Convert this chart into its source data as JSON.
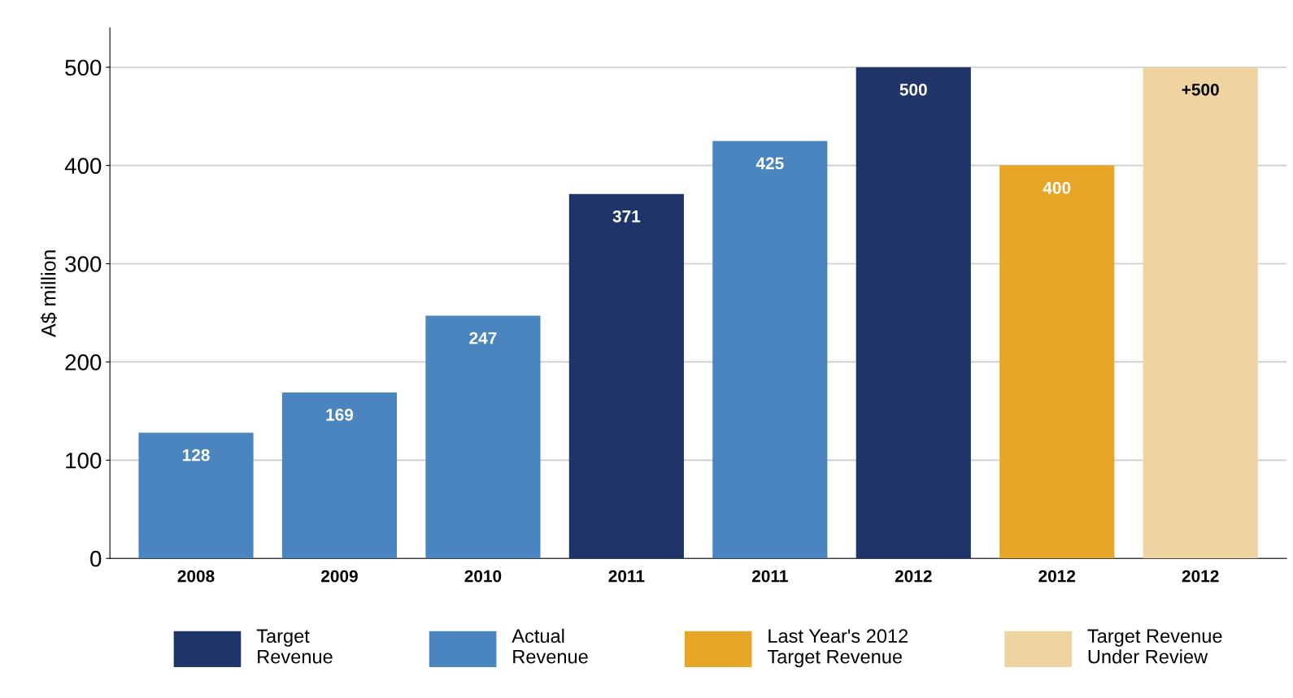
{
  "chart_data": {
    "type": "bar",
    "ylabel": "A$ million",
    "categories": [
      "2008",
      "2009",
      "2010",
      "2011",
      "2011",
      "2012",
      "2012",
      "2012"
    ],
    "series": [
      {
        "name": "Target\nRevenue",
        "color": "#1f3468",
        "values": [
          null,
          null,
          null,
          371,
          null,
          500,
          null,
          null
        ],
        "value_labels": [
          null,
          null,
          null,
          "371",
          null,
          "500",
          null,
          null
        ]
      },
      {
        "name": "Actual\nRevenue",
        "color": "#4a85bf",
        "values": [
          128,
          169,
          247,
          null,
          425,
          null,
          null,
          null
        ],
        "value_labels": [
          "128",
          "169",
          "247",
          null,
          "425",
          null,
          null,
          null
        ]
      },
      {
        "name": "Last Year's 2012\nTarget Revenue",
        "color": "#e8a628",
        "values": [
          null,
          null,
          null,
          null,
          null,
          null,
          400,
          null
        ],
        "value_labels": [
          null,
          null,
          null,
          null,
          null,
          null,
          "400",
          null
        ]
      },
      {
        "name": "Target Revenue\nUnder Review",
        "color": "#efd3a0",
        "values": [
          null,
          null,
          null,
          null,
          null,
          null,
          null,
          500
        ],
        "value_labels": [
          null,
          null,
          null,
          null,
          null,
          null,
          null,
          "+500"
        ]
      }
    ],
    "ylim": [
      0,
      540
    ],
    "yticks": [
      0,
      100,
      200,
      300,
      400,
      500
    ],
    "grid": "y",
    "legend": "bottom"
  }
}
